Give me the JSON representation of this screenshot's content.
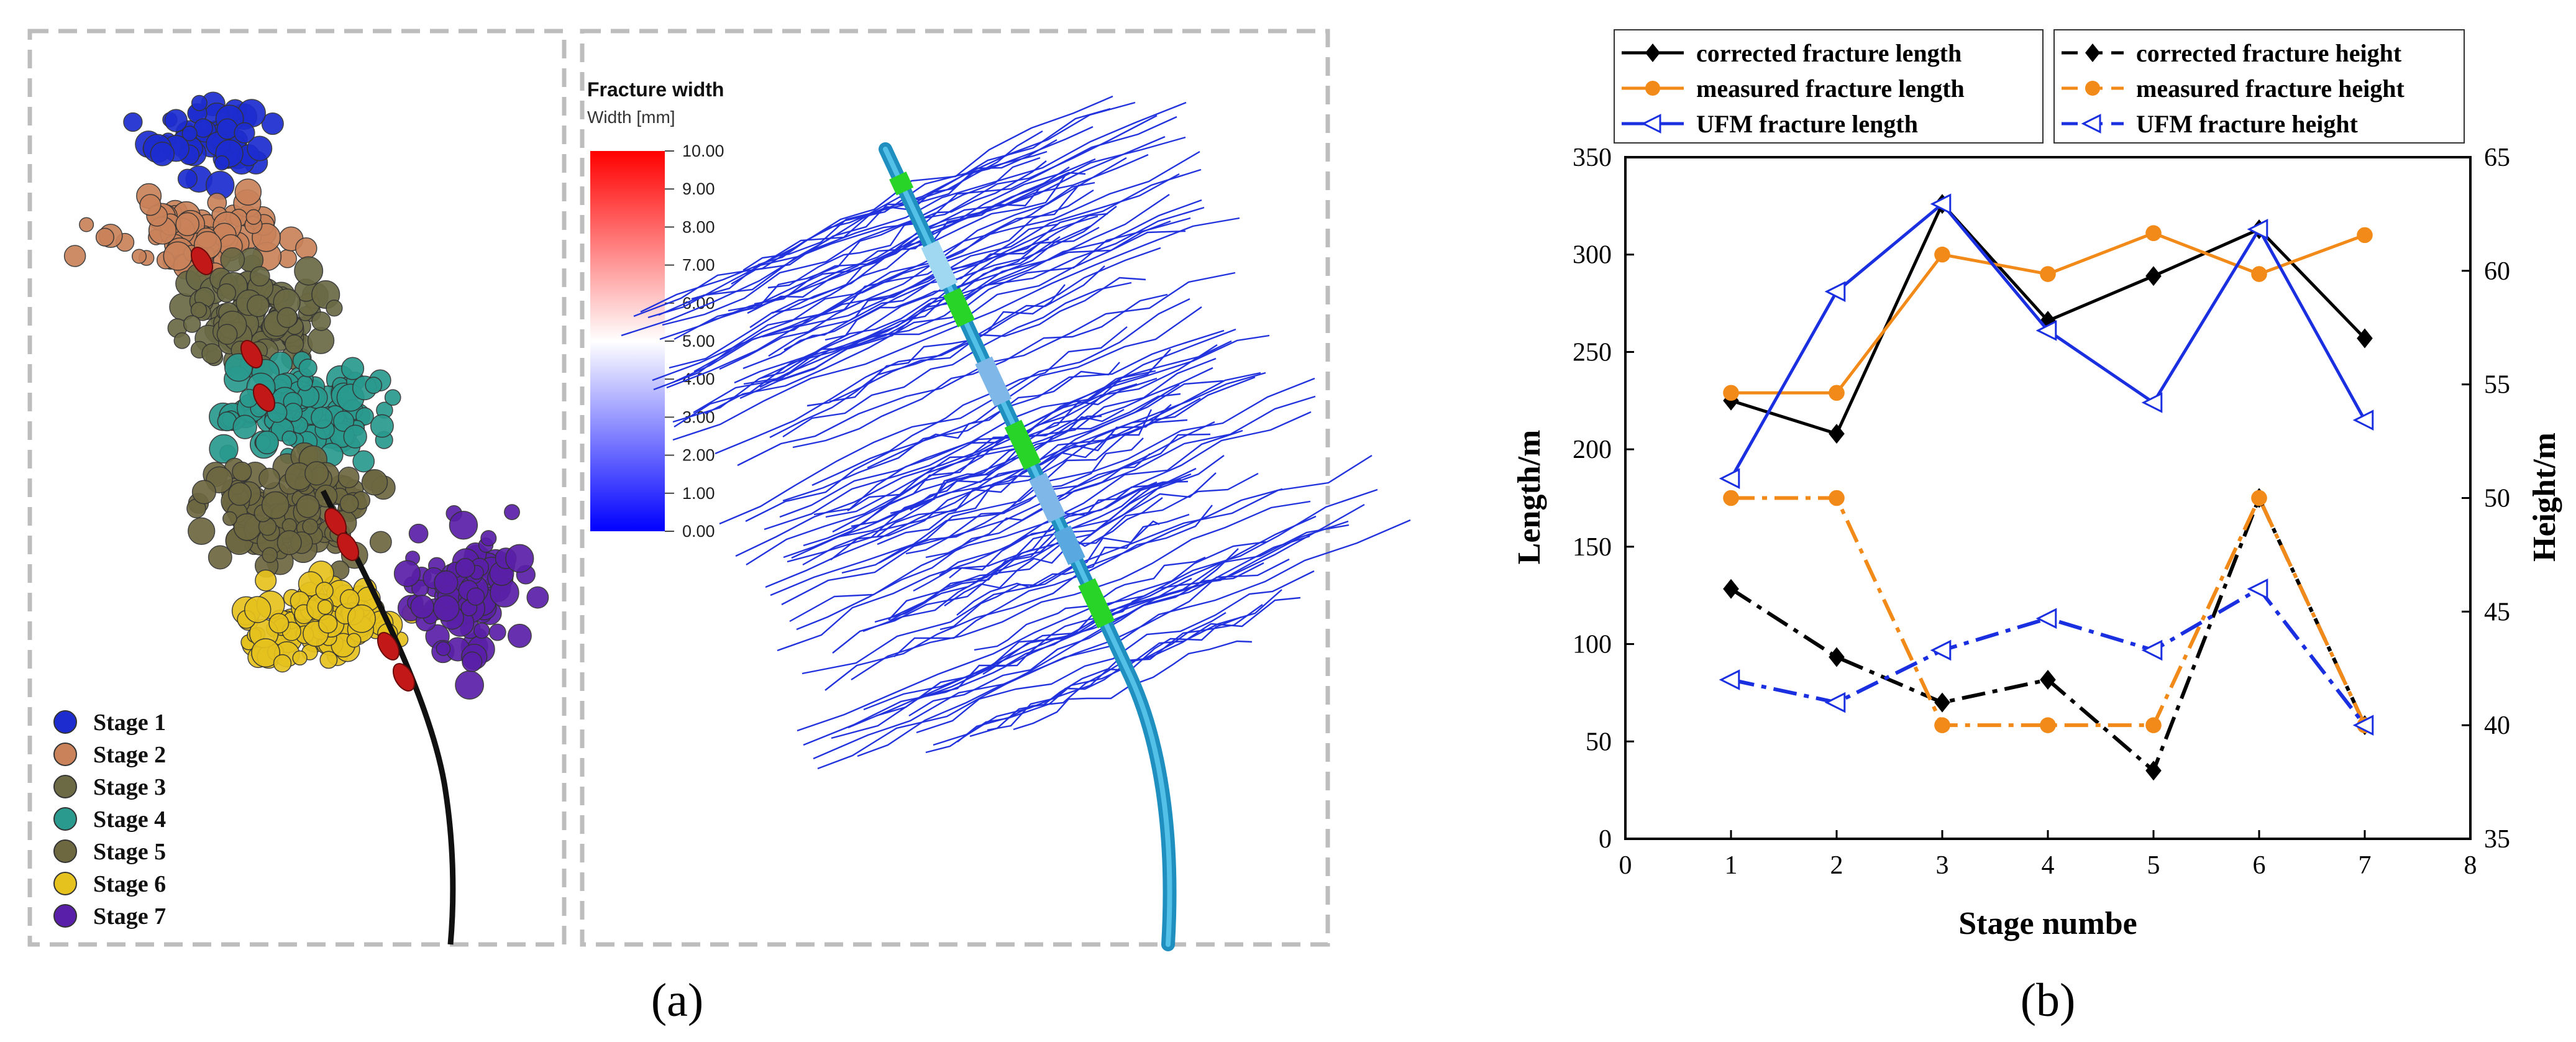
{
  "panel_a": {
    "caption": "(a)",
    "legend_title": "Fracture width",
    "legend_subtitle": "Width [mm]",
    "colorbar_ticks": [
      "10.00",
      "9.00",
      "8.00",
      "7.00",
      "6.00",
      "5.00",
      "4.00",
      "3.00",
      "2.00",
      "1.00",
      "0.00"
    ],
    "stages": [
      {
        "label": "Stage 1",
        "color": "#1c2ccf"
      },
      {
        "label": "Stage 2",
        "color": "#c9825a"
      },
      {
        "label": "Stage 3",
        "color": "#6b6a45"
      },
      {
        "label": "Stage 4",
        "color": "#2a9a8e"
      },
      {
        "label": "Stage 5",
        "color": "#6d6840"
      },
      {
        "label": "Stage 6",
        "color": "#e6c21e"
      },
      {
        "label": "Stage 7",
        "color": "#5a1fa8"
      }
    ]
  },
  "panel_b": {
    "caption": "(b)"
  },
  "chart_data": {
    "type": "line",
    "xlabel": "Stage numbe",
    "ylabel": "Length/m",
    "y2label": "Height/m",
    "xlim": [
      0,
      8
    ],
    "ylim": [
      0,
      350
    ],
    "y2lim": [
      35,
      65
    ],
    "xticks": [
      0,
      1,
      2,
      3,
      4,
      5,
      6,
      7,
      8
    ],
    "yticks": [
      0,
      50,
      100,
      150,
      200,
      250,
      300,
      350
    ],
    "y2ticks": [
      35,
      40,
      45,
      50,
      55,
      60,
      65
    ],
    "grid": false,
    "legend_position": "top",
    "x": [
      1,
      2,
      3,
      4,
      5,
      6,
      7
    ],
    "series": [
      {
        "name": "corrected fracture length",
        "axis": "left",
        "values": [
          225,
          208,
          326,
          266,
          289,
          313,
          257
        ],
        "color": "#000000",
        "marker": "diamond",
        "dash": "solid"
      },
      {
        "name": "measured fracture length",
        "axis": "left",
        "values": [
          229,
          229,
          300,
          290,
          311,
          290,
          310
        ],
        "color": "#f28a1a",
        "marker": "circle",
        "dash": "solid"
      },
      {
        "name": "UFM fracture length",
        "axis": "left",
        "values": [
          185,
          281,
          326,
          261,
          224,
          313,
          215
        ],
        "color": "#1a2fe0",
        "marker": "triangle-left",
        "dash": "solid"
      },
      {
        "name": "corrected fracture height",
        "axis": "right",
        "values": [
          46,
          43,
          41,
          42,
          38,
          50,
          40
        ],
        "color": "#000000",
        "marker": "diamond",
        "dash": "dashdot"
      },
      {
        "name": "measured fracture height",
        "axis": "right",
        "values": [
          50,
          50,
          40,
          40,
          40,
          50,
          40
        ],
        "color": "#f28a1a",
        "marker": "circle",
        "dash": "dashdot"
      },
      {
        "name": "UFM fracture height",
        "axis": "right",
        "values": [
          42,
          41,
          43.3,
          44.7,
          43.3,
          46,
          40
        ],
        "color": "#1a2fe0",
        "marker": "triangle-left",
        "dash": "dashdot"
      }
    ]
  }
}
